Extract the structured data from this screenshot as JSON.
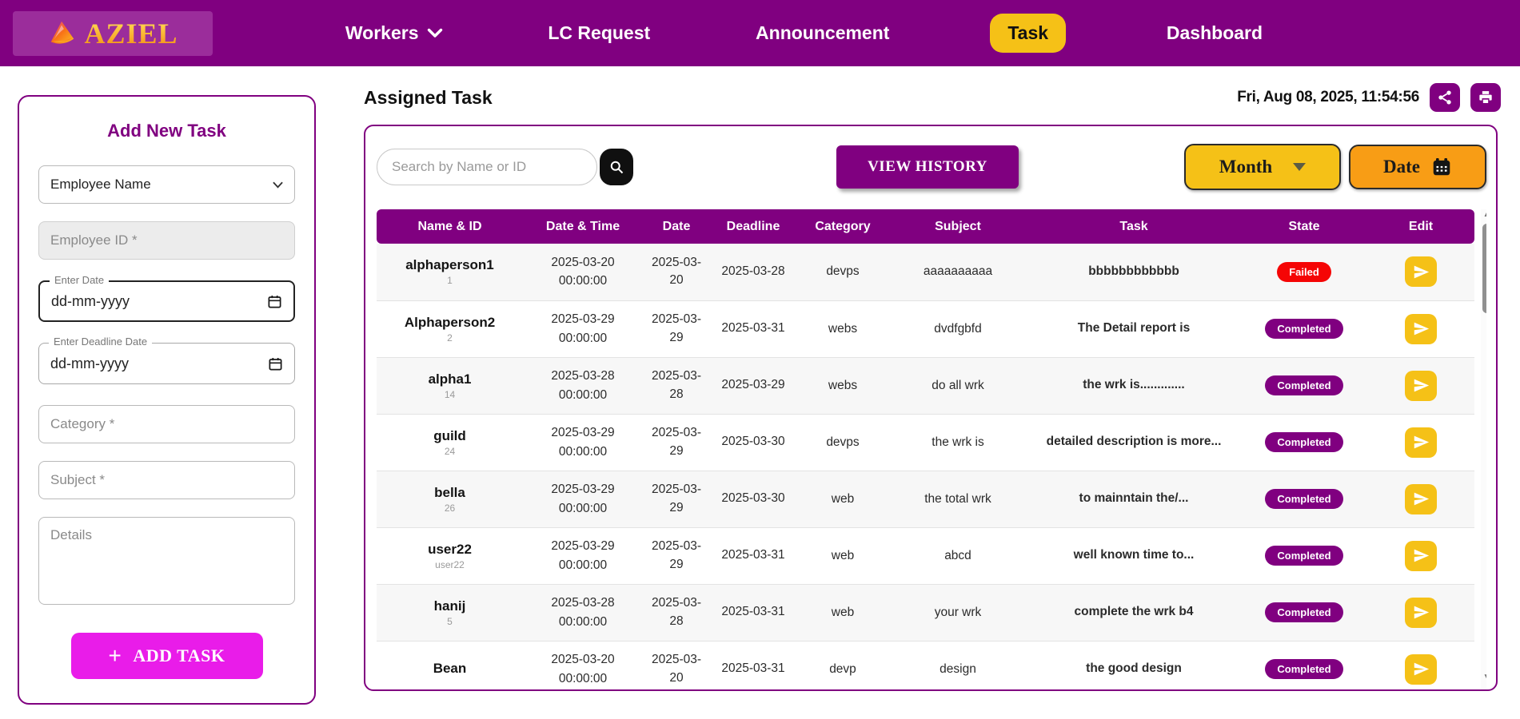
{
  "brand": {
    "name": "AZIEL"
  },
  "nav": {
    "items": [
      {
        "label": "Workers",
        "has_dropdown": true,
        "active": false
      },
      {
        "label": "LC Request",
        "has_dropdown": false,
        "active": false
      },
      {
        "label": "Announcement",
        "has_dropdown": false,
        "active": false
      },
      {
        "label": "Task",
        "has_dropdown": false,
        "active": true
      },
      {
        "label": "Dashboard",
        "has_dropdown": false,
        "active": false
      }
    ]
  },
  "form": {
    "title": "Add New Task",
    "employee_name_value": "Employee Name",
    "employee_id_placeholder": "Employee ID *",
    "date_label": "Enter Date",
    "date_value": "dd-mm-yyyy",
    "deadline_label": "Enter Deadline Date",
    "deadline_value": "dd-mm-yyyy",
    "category_placeholder": "Category *",
    "subject_placeholder": "Subject *",
    "details_placeholder": "Details",
    "submit_label": "ADD TASK",
    "submit_plus": "+"
  },
  "main_header": {
    "title": "Assigned Task",
    "timestamp": "Fri, Aug 08, 2025, 11:54:56"
  },
  "toolbar": {
    "search_placeholder": "Search by Name or ID",
    "view_history_label": "VIEW HISTORY",
    "month_label": "Month",
    "date_label": "Date"
  },
  "table": {
    "columns": [
      "Name & ID",
      "Date & Time",
      "Date",
      "Deadline",
      "Category",
      "Subject",
      "Task",
      "State",
      "Edit"
    ],
    "rows": [
      {
        "name": "alphaperson1",
        "id": "1",
        "datetime": "2025-03-20 00:00:00",
        "date": "2025-03-20",
        "deadline": "2025-03-28",
        "category": "devps",
        "subject": "aaaaaaaaaa",
        "task": "bbbbbbbbbbbb",
        "state": "Failed"
      },
      {
        "name": "Alphaperson2",
        "id": "2",
        "datetime": "2025-03-29 00:00:00",
        "date": "2025-03-29",
        "deadline": "2025-03-31",
        "category": "webs",
        "subject": "dvdfgbfd",
        "task": "The Detail report is",
        "state": "Completed"
      },
      {
        "name": "alpha1",
        "id": "14",
        "datetime": "2025-03-28 00:00:00",
        "date": "2025-03-28",
        "deadline": "2025-03-29",
        "category": "webs",
        "subject": "do all wrk",
        "task": "the wrk is.............",
        "state": "Completed"
      },
      {
        "name": "guild",
        "id": "24",
        "datetime": "2025-03-29 00:00:00",
        "date": "2025-03-29",
        "deadline": "2025-03-30",
        "category": "devps",
        "subject": "the wrk is",
        "task": "detailed description is more...",
        "state": "Completed"
      },
      {
        "name": "bella",
        "id": "26",
        "datetime": "2025-03-29 00:00:00",
        "date": "2025-03-29",
        "deadline": "2025-03-30",
        "category": "web",
        "subject": "the total wrk",
        "task": "to mainntain the/...",
        "state": "Completed"
      },
      {
        "name": "user22",
        "id": "user22",
        "datetime": "2025-03-29 00:00:00",
        "date": "2025-03-29",
        "deadline": "2025-03-31",
        "category": "web",
        "subject": "abcd",
        "task": "well known time to...",
        "state": "Completed"
      },
      {
        "name": "hanij",
        "id": "5",
        "datetime": "2025-03-28 00:00:00",
        "date": "2025-03-28",
        "deadline": "2025-03-31",
        "category": "web",
        "subject": "your wrk",
        "task": "complete the wrk b4",
        "state": "Completed"
      },
      {
        "name": "Bean",
        "id": "",
        "datetime": "2025-03-20 00:00:00",
        "date": "2025-03-20",
        "deadline": "2025-03-31",
        "category": "devp",
        "subject": "design",
        "task": "the good design",
        "state": "Completed"
      }
    ]
  },
  "icons": {
    "logo": "aziel-flame-triangle",
    "nav_dropdown": "chevron-down",
    "share": "share-nodes",
    "print": "printer",
    "search": "magnifier",
    "month_caret": "caret-down",
    "date_calendar": "calendar-filled",
    "field_calendar": "calendar-outline",
    "edit": "send-paper-plane",
    "add": "plus",
    "scroll_up": "triangle-up",
    "scroll_down": "triangle-down"
  },
  "colors": {
    "navbar": "#800080",
    "logo_box": "#9b2d9b",
    "gold": "#f5c117",
    "orange": "#f89d15",
    "magenta": "#e91ce9",
    "failed": "#f50505",
    "completed": "#800080"
  }
}
